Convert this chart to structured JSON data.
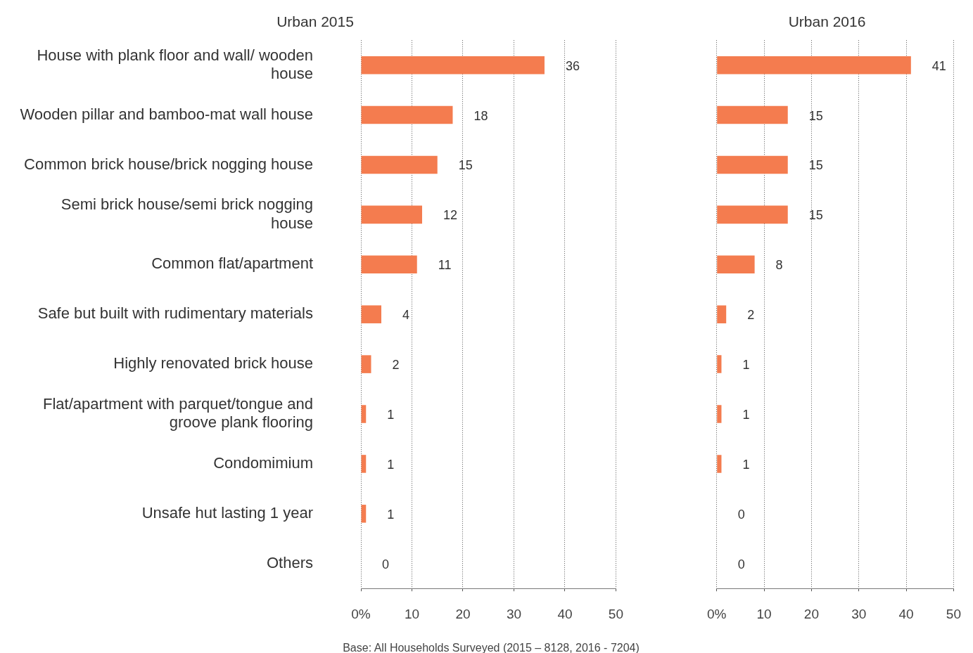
{
  "chart_data": [
    {
      "type": "bar",
      "orientation": "horizontal",
      "title": "Urban 2015",
      "categories": [
        "House with plank floor and wall/ wooden house",
        "Wooden pillar and bamboo-mat wall house",
        "Common brick house/brick nogging house",
        "Semi brick house/semi brick nogging house",
        "Common flat/apartment",
        "Safe but built with rudimentary materials",
        "Highly renovated brick house",
        "Flat/apartment with parquet/tongue and groove plank flooring",
        "Condomimium",
        "Unsafe hut lasting 1 year",
        "Others"
      ],
      "values": [
        36,
        18,
        15,
        12,
        11,
        4,
        2,
        1,
        1,
        1,
        0
      ],
      "data_labels": true,
      "color": "#f47c4f",
      "xlim": [
        0,
        50
      ],
      "xticks": [
        {
          "value": 0,
          "label": "0%"
        },
        10,
        20,
        30,
        40,
        50
      ],
      "grid": "x",
      "legend": false,
      "annotations": [
        "Base: All Households Surveyed (2015 – 8128, 2016 - 7204)"
      ]
    },
    {
      "type": "bar",
      "orientation": "horizontal",
      "title": "Urban 2016",
      "categories": [
        null,
        null,
        null,
        null,
        null,
        null,
        null,
        null,
        null,
        null,
        null
      ],
      "values": [
        41,
        15,
        15,
        15,
        8,
        2,
        1,
        1,
        1,
        0,
        0
      ],
      "data_labels": true,
      "color": "#f47c4f",
      "xlim": [
        0,
        50
      ],
      "xticks": [
        {
          "value": 0,
          "label": "0%"
        },
        10,
        20,
        30,
        40,
        50
      ],
      "grid": "x",
      "legend": false,
      "tick_labels": "x"
    }
  ]
}
